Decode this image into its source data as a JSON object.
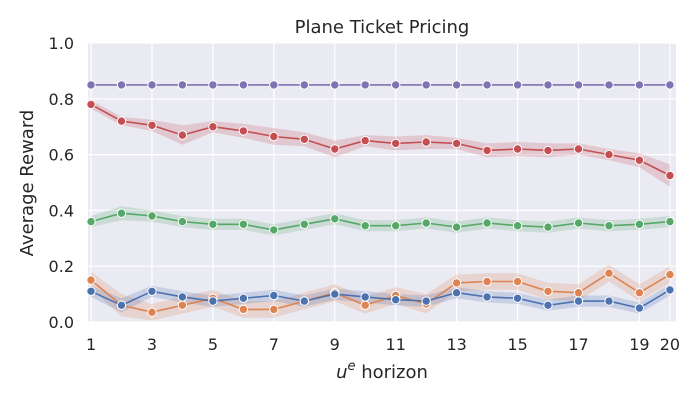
{
  "chart_data": {
    "type": "line",
    "title": "Plane Ticket Pricing",
    "xlabel": "u^e horizon",
    "xlabel_base": "u",
    "xlabel_sup": "e",
    "xlabel_rest": " horizon",
    "ylabel": "Average Reward",
    "xlim": [
      0.9,
      20.2
    ],
    "ylim": [
      0.0,
      1.0
    ],
    "xticks": [
      1,
      3,
      5,
      7,
      9,
      11,
      13,
      15,
      17,
      19,
      20
    ],
    "yticks": [
      "0.0",
      "0.2",
      "0.4",
      "0.6",
      "0.8",
      "1.0"
    ],
    "x": [
      1,
      2,
      3,
      4,
      5,
      6,
      7,
      8,
      9,
      10,
      11,
      12,
      13,
      14,
      15,
      16,
      17,
      18,
      19,
      20
    ],
    "grid": true,
    "series": [
      {
        "color": "#8172b3",
        "values": [
          0.85,
          0.85,
          0.85,
          0.85,
          0.85,
          0.85,
          0.85,
          0.85,
          0.85,
          0.85,
          0.85,
          0.85,
          0.85,
          0.85,
          0.85,
          0.85,
          0.85,
          0.85,
          0.85,
          0.85
        ],
        "spread": [
          0.002,
          0.002,
          0.002,
          0.002,
          0.002,
          0.002,
          0.002,
          0.002,
          0.002,
          0.002,
          0.002,
          0.002,
          0.002,
          0.002,
          0.002,
          0.002,
          0.002,
          0.002,
          0.002,
          0.002
        ]
      },
      {
        "color": "#c44e52",
        "values": [
          0.78,
          0.72,
          0.705,
          0.67,
          0.7,
          0.685,
          0.665,
          0.655,
          0.62,
          0.65,
          0.64,
          0.645,
          0.64,
          0.615,
          0.62,
          0.615,
          0.62,
          0.6,
          0.58,
          0.525
        ],
        "spread": [
          0.015,
          0.015,
          0.02,
          0.035,
          0.02,
          0.025,
          0.03,
          0.025,
          0.03,
          0.02,
          0.025,
          0.025,
          0.02,
          0.025,
          0.025,
          0.025,
          0.02,
          0.02,
          0.025,
          0.04
        ]
      },
      {
        "color": "#55a868",
        "values": [
          0.36,
          0.39,
          0.38,
          0.36,
          0.35,
          0.35,
          0.33,
          0.35,
          0.37,
          0.345,
          0.345,
          0.355,
          0.34,
          0.355,
          0.345,
          0.34,
          0.355,
          0.345,
          0.35,
          0.36
        ],
        "spread": [
          0.02,
          0.025,
          0.02,
          0.02,
          0.02,
          0.02,
          0.02,
          0.02,
          0.02,
          0.02,
          0.02,
          0.02,
          0.02,
          0.02,
          0.02,
          0.02,
          0.02,
          0.02,
          0.02,
          0.02
        ]
      },
      {
        "color": "#dd8452",
        "values": [
          0.15,
          0.06,
          0.035,
          0.06,
          0.085,
          0.045,
          0.045,
          0.075,
          0.105,
          0.06,
          0.095,
          0.065,
          0.14,
          0.145,
          0.145,
          0.11,
          0.105,
          0.175,
          0.105,
          0.17
        ],
        "spread": [
          0.03,
          0.04,
          0.03,
          0.03,
          0.03,
          0.03,
          0.03,
          0.03,
          0.03,
          0.03,
          0.03,
          0.035,
          0.03,
          0.03,
          0.03,
          0.03,
          0.03,
          0.03,
          0.03,
          0.03
        ]
      },
      {
        "color": "#4c72b0",
        "values": [
          0.11,
          0.06,
          0.11,
          0.09,
          0.075,
          0.085,
          0.095,
          0.075,
          0.1,
          0.09,
          0.08,
          0.075,
          0.105,
          0.09,
          0.085,
          0.06,
          0.075,
          0.075,
          0.05,
          0.115
        ],
        "spread": [
          0.02,
          0.025,
          0.02,
          0.02,
          0.02,
          0.02,
          0.02,
          0.02,
          0.02,
          0.02,
          0.02,
          0.02,
          0.02,
          0.02,
          0.02,
          0.02,
          0.02,
          0.02,
          0.02,
          0.02
        ]
      }
    ]
  }
}
